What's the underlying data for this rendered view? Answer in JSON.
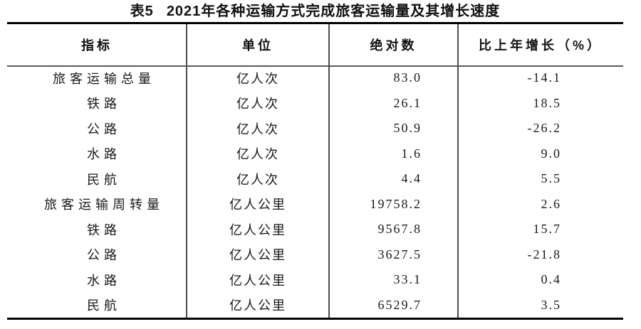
{
  "title": {
    "prefix": "表5",
    "text": "2021年各种运输方式完成旅客运输量及其增长速度"
  },
  "table": {
    "columns": [
      "指标",
      "单位",
      "绝对数",
      "比上年增长（%）"
    ],
    "rows": [
      {
        "indicator": "旅客运输总量",
        "unit": "亿人次",
        "value": "83.0",
        "growth": "-14.1"
      },
      {
        "indicator": "铁路",
        "unit": "亿人次",
        "value": "26.1",
        "growth": "18.5"
      },
      {
        "indicator": "公路",
        "unit": "亿人次",
        "value": "50.9",
        "growth": "-26.2"
      },
      {
        "indicator": "水路",
        "unit": "亿人次",
        "value": "1.6",
        "growth": "9.0"
      },
      {
        "indicator": "民航",
        "unit": "亿人次",
        "value": "4.4",
        "growth": "5.5"
      },
      {
        "indicator": "旅客运输周转量",
        "unit": "亿人公里",
        "value": "19758.2",
        "growth": "2.6"
      },
      {
        "indicator": "铁路",
        "unit": "亿人公里",
        "value": "9567.8",
        "growth": "15.7"
      },
      {
        "indicator": "公路",
        "unit": "亿人公里",
        "value": "3627.5",
        "growth": "-21.8"
      },
      {
        "indicator": "水路",
        "unit": "亿人公里",
        "value": "33.1",
        "growth": "0.4"
      },
      {
        "indicator": "民航",
        "unit": "亿人公里",
        "value": "6529.7",
        "growth": "3.5"
      }
    ]
  },
  "colors": {
    "rule_heavy": "#000000",
    "rule_light": "#5a5a5a",
    "divider": "#4d4d4d",
    "text": "#1a1a1a"
  }
}
